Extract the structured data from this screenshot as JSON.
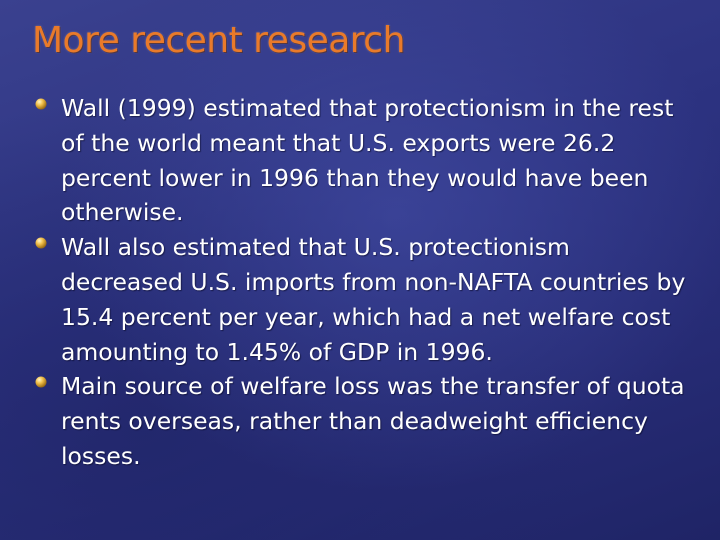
{
  "slide": {
    "title": "More recent research",
    "bullets": [
      {
        "text": "Wall (1999) estimated that protectionism in the rest of the world meant that U.S. exports were 26.2 percent lower in 1996 than they would have been otherwise.",
        "icon": "bullet-icon"
      },
      {
        "text": "Wall also estimated that U.S. protectionism decreased U.S. imports from non-NAFTA countries by 15.4 percent per year, which had a net welfare cost amounting to 1.45% of GDP in 1996.",
        "icon": "bullet-icon"
      },
      {
        "text": "Main source of welfare loss was the transfer of quota rents overseas, rather than deadweight efficiency losses.",
        "icon": "bullet-icon"
      }
    ]
  },
  "colors": {
    "background": "#2c3280",
    "title": "#e97a2a",
    "text": "#ffffff",
    "bullet": "#f2c04a"
  }
}
